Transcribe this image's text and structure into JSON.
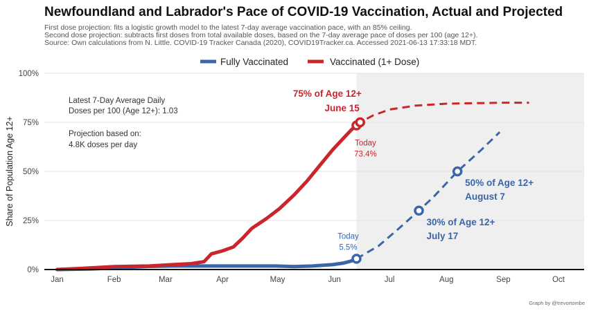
{
  "chart_data": {
    "type": "line",
    "title": "Newfoundland and Labrador's Pace of COVID-19 Vaccination, Actual and Projected",
    "subtitle_lines": [
      "First dose projection: fits a logistic growth model to the latest 7-day average vaccination pace, with an 85% ceiling.",
      "Second dose projection: subtracts first doses from total available doses, based on the 7-day average pace of doses per 100 (age 12+).",
      "Source: Own calculations from N. Little. COVID-19 Tracker Canada (2020), COVID19Tracker.ca. Accessed 2021-06-13 17:33:18 MDT."
    ],
    "ylabel": "Share of Population Age 12+",
    "xlabel": "",
    "x_ticks": [
      "Jan",
      "Feb",
      "Mar",
      "Apr",
      "May",
      "Jun",
      "Jul",
      "Aug",
      "Sep",
      "Oct"
    ],
    "y_ticks": [
      "0%",
      "25%",
      "50%",
      "75%",
      "100%"
    ],
    "ylim": [
      0,
      100
    ],
    "xlim": [
      "2020-12-25",
      "2021-10-15"
    ],
    "grid": true,
    "legend_position": "top",
    "today": "2021-06-13",
    "series": [
      {
        "name": "Fully Vaccinated",
        "color": "#3a66a8",
        "actual": [
          [
            "2021-01-01",
            0.0
          ],
          [
            "2021-01-20",
            0.3
          ],
          [
            "2021-02-05",
            1.0
          ],
          [
            "2021-02-20",
            1.6
          ],
          [
            "2021-03-05",
            1.8
          ],
          [
            "2021-03-20",
            1.8
          ],
          [
            "2021-04-10",
            1.8
          ],
          [
            "2021-04-30",
            1.8
          ],
          [
            "2021-05-10",
            1.5
          ],
          [
            "2021-05-20",
            1.8
          ],
          [
            "2021-05-31",
            2.5
          ],
          [
            "2021-06-06",
            3.3
          ],
          [
            "2021-06-10",
            4.3
          ],
          [
            "2021-06-13",
            5.5
          ]
        ],
        "projected": [
          [
            "2021-06-13",
            5.5
          ],
          [
            "2021-06-25",
            12
          ],
          [
            "2021-07-05",
            20
          ],
          [
            "2021-07-17",
            30
          ],
          [
            "2021-07-25",
            37
          ],
          [
            "2021-08-07",
            50
          ],
          [
            "2021-08-20",
            61
          ],
          [
            "2021-08-30",
            70
          ]
        ]
      },
      {
        "name": "Vaccinated (1+ Dose)",
        "color": "#c9262c",
        "actual": [
          [
            "2021-01-01",
            0.0
          ],
          [
            "2021-01-15",
            0.6
          ],
          [
            "2021-02-01",
            1.5
          ],
          [
            "2021-02-20",
            1.8
          ],
          [
            "2021-03-05",
            2.5
          ],
          [
            "2021-03-15",
            3.0
          ],
          [
            "2021-03-22",
            4.0
          ],
          [
            "2021-03-26",
            8.0
          ],
          [
            "2021-04-01",
            9.5
          ],
          [
            "2021-04-07",
            11.5
          ],
          [
            "2021-04-12",
            16
          ],
          [
            "2021-04-17",
            21
          ],
          [
            "2021-04-25",
            26
          ],
          [
            "2021-05-02",
            31
          ],
          [
            "2021-05-10",
            38
          ],
          [
            "2021-05-17",
            45
          ],
          [
            "2021-05-24",
            53
          ],
          [
            "2021-05-31",
            61
          ],
          [
            "2021-06-06",
            67
          ],
          [
            "2021-06-10",
            71
          ],
          [
            "2021-06-13",
            73.4
          ]
        ],
        "projected": [
          [
            "2021-06-13",
            73.4
          ],
          [
            "2021-06-15",
            75
          ],
          [
            "2021-06-22",
            78.5
          ],
          [
            "2021-07-01",
            81.5
          ],
          [
            "2021-07-15",
            83.5
          ],
          [
            "2021-08-01",
            84.5
          ],
          [
            "2021-09-01",
            85
          ],
          [
            "2021-09-15",
            85
          ]
        ]
      }
    ],
    "milestones": [
      {
        "series": 1,
        "date": "2021-06-13",
        "value": 73.4,
        "kind": "today",
        "label_lines": [
          "Today",
          "73.4%"
        ]
      },
      {
        "series": 1,
        "date": "2021-06-15",
        "value": 75,
        "kind": "goal",
        "label_lines": [
          "75% of Age 12+",
          "June 15"
        ]
      },
      {
        "series": 0,
        "date": "2021-06-13",
        "value": 5.5,
        "kind": "today",
        "label_lines": [
          "Today",
          "5.5%"
        ]
      },
      {
        "series": 0,
        "date": "2021-07-17",
        "value": 30,
        "kind": "goal",
        "label_lines": [
          "30% of Age 12+",
          "July 17"
        ]
      },
      {
        "series": 0,
        "date": "2021-08-07",
        "value": 50,
        "kind": "goal",
        "label_lines": [
          "50% of Age 12+",
          "August 7"
        ]
      }
    ],
    "notes": [
      "Latest 7-Day Average Daily",
      "Doses per 100 (Age 12+): 1.03",
      "Projection based on:",
      "4.8K doses per day"
    ],
    "caption": "Graph by @trevortombe",
    "colors": {
      "projection_shade": "#efefef",
      "grid": "#e3e3e3"
    }
  }
}
